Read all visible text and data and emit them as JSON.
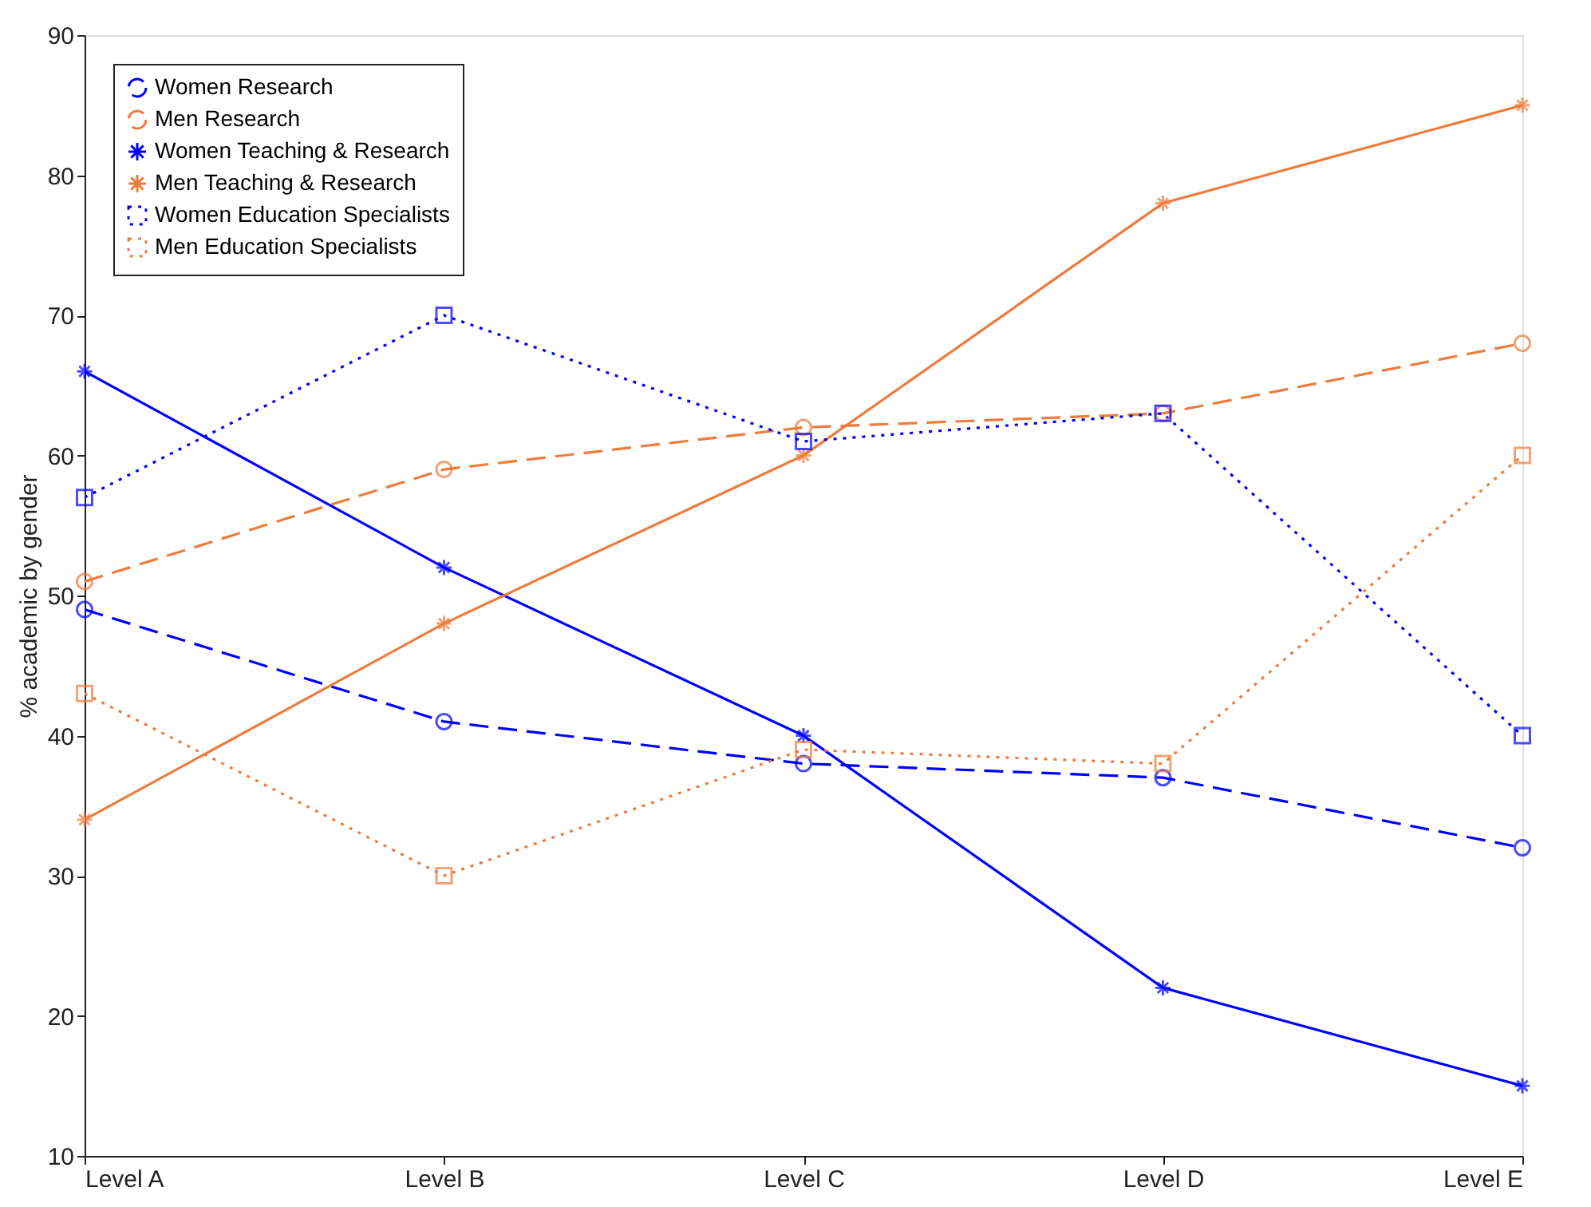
{
  "chart_data": {
    "type": "line",
    "ylabel": "% academic by gender",
    "categories": [
      "Level A",
      "Level B",
      "Level C",
      "Level D",
      "Level E"
    ],
    "ylim": [
      10,
      90
    ],
    "yticks": [
      10,
      20,
      30,
      40,
      50,
      60,
      70,
      80,
      90
    ],
    "grid": false,
    "legend": "top left",
    "series": [
      {
        "name": "Women Research",
        "color": "#0000ff",
        "marker": "circle",
        "line_style": "dashed",
        "values": [
          49,
          41,
          38,
          37,
          32
        ]
      },
      {
        "name": "Men Research",
        "color": "#ee7b3b",
        "marker": "circle",
        "line_style": "dashed",
        "values": [
          51,
          59,
          62,
          63,
          68
        ]
      },
      {
        "name": "Women Teaching & Research",
        "color": "#0000ff",
        "marker": "cross",
        "line_style": "solid",
        "values": [
          66,
          52,
          40,
          22,
          15
        ]
      },
      {
        "name": "Men Teaching & Research",
        "color": "#ee7b3b",
        "marker": "cross",
        "line_style": "solid",
        "values": [
          34,
          48,
          60,
          78,
          85
        ]
      },
      {
        "name": "Women Education Specialists",
        "color": "#0000ff",
        "marker": "square",
        "line_style": "dotted",
        "values": [
          57,
          70,
          61,
          63,
          40
        ]
      },
      {
        "name": "Men Education Specialists",
        "color": "#ee7b3b",
        "marker": "square",
        "line_style": "dotted",
        "values": [
          43,
          30,
          39,
          38,
          60
        ]
      }
    ]
  }
}
